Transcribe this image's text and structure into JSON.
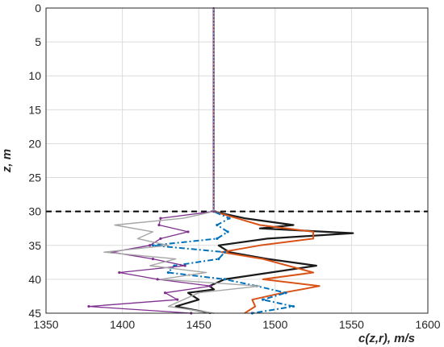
{
  "chart_data": {
    "type": "line",
    "title": "",
    "xlabel": "c(z,r), m/s",
    "ylabel": "z, m",
    "xlim": [
      1350,
      1600
    ],
    "ylim": [
      0,
      45
    ],
    "y_reversed": true,
    "grid": true,
    "xticks": [
      1350,
      1400,
      1450,
      1500,
      1550,
      1600
    ],
    "yticks": [
      0,
      5,
      10,
      15,
      20,
      25,
      30,
      35,
      40,
      45
    ],
    "reference_line": {
      "y": 30,
      "style": "dashed",
      "color": "#000000"
    },
    "series": [
      {
        "color": "#1a1a1a",
        "style": "solid",
        "width": 2.2,
        "markers": false,
        "points": [
          [
            1459.7,
            0
          ],
          [
            1459.7,
            30
          ],
          [
            1480,
            31
          ],
          [
            1512,
            32
          ],
          [
            1490,
            32.5
          ],
          [
            1551,
            33.2
          ],
          [
            1495,
            34
          ],
          [
            1463,
            35
          ],
          [
            1470,
            36
          ],
          [
            1495,
            37
          ],
          [
            1527,
            38
          ],
          [
            1497,
            39
          ],
          [
            1467,
            40
          ],
          [
            1457,
            41
          ],
          [
            1460,
            41.5
          ],
          [
            1443,
            42
          ],
          [
            1450,
            43
          ],
          [
            1435,
            44
          ],
          [
            1458,
            45
          ]
        ]
      },
      {
        "color": "#d95319",
        "style": "solid",
        "width": 2.0,
        "markers": false,
        "points": [
          [
            1459.7,
            0
          ],
          [
            1459.7,
            30
          ],
          [
            1475,
            31
          ],
          [
            1490,
            32
          ],
          [
            1525,
            33
          ],
          [
            1525,
            34
          ],
          [
            1490,
            35
          ],
          [
            1465,
            36
          ],
          [
            1492,
            37
          ],
          [
            1525,
            39
          ],
          [
            1492,
            40
          ],
          [
            1529,
            41
          ],
          [
            1505,
            42
          ],
          [
            1485,
            43
          ],
          [
            1487,
            44
          ],
          [
            1480,
            45
          ]
        ]
      },
      {
        "color": "#0072bd",
        "style": "dashdot",
        "width": 2.0,
        "markers": true,
        "points": [
          [
            1459.7,
            0
          ],
          [
            1459.7,
            30
          ],
          [
            1470,
            31
          ],
          [
            1462,
            32
          ],
          [
            1469,
            33
          ],
          [
            1462,
            34
          ],
          [
            1420,
            35
          ],
          [
            1467,
            36
          ],
          [
            1463,
            37
          ],
          [
            1434,
            38
          ],
          [
            1430,
            39
          ],
          [
            1467,
            40
          ],
          [
            1488,
            41
          ],
          [
            1507,
            42
          ],
          [
            1492,
            43
          ],
          [
            1512,
            44
          ],
          [
            1485,
            45
          ]
        ]
      },
      {
        "color": "#7e2f8e",
        "style": "solid",
        "width": 1.3,
        "markers": true,
        "points": [
          [
            1459.7,
            0
          ],
          [
            1459.7,
            30
          ],
          [
            1425,
            31
          ],
          [
            1424,
            32
          ],
          [
            1443,
            33
          ],
          [
            1425,
            34
          ],
          [
            1418,
            35
          ],
          [
            1393,
            36
          ],
          [
            1420,
            37
          ],
          [
            1441,
            38
          ],
          [
            1398,
            39
          ],
          [
            1423,
            40
          ],
          [
            1458,
            41
          ],
          [
            1428,
            42
          ],
          [
            1436,
            43
          ],
          [
            1378,
            44
          ],
          [
            1445,
            45
          ]
        ]
      },
      {
        "color": "#a6a6a6",
        "style": "solid",
        "width": 1.4,
        "markers": false,
        "points": [
          [
            1459.7,
            0
          ],
          [
            1459.7,
            30
          ],
          [
            1440,
            31
          ],
          [
            1395,
            32
          ],
          [
            1420,
            33
          ],
          [
            1410,
            34
          ],
          [
            1430,
            35
          ],
          [
            1388,
            36
          ],
          [
            1435,
            37
          ],
          [
            1418,
            38
          ],
          [
            1455,
            39
          ],
          [
            1425,
            40
          ],
          [
            1490,
            41
          ],
          [
            1450,
            42
          ],
          [
            1440,
            43
          ],
          [
            1430,
            44
          ],
          [
            1460,
            45
          ]
        ]
      }
    ]
  }
}
